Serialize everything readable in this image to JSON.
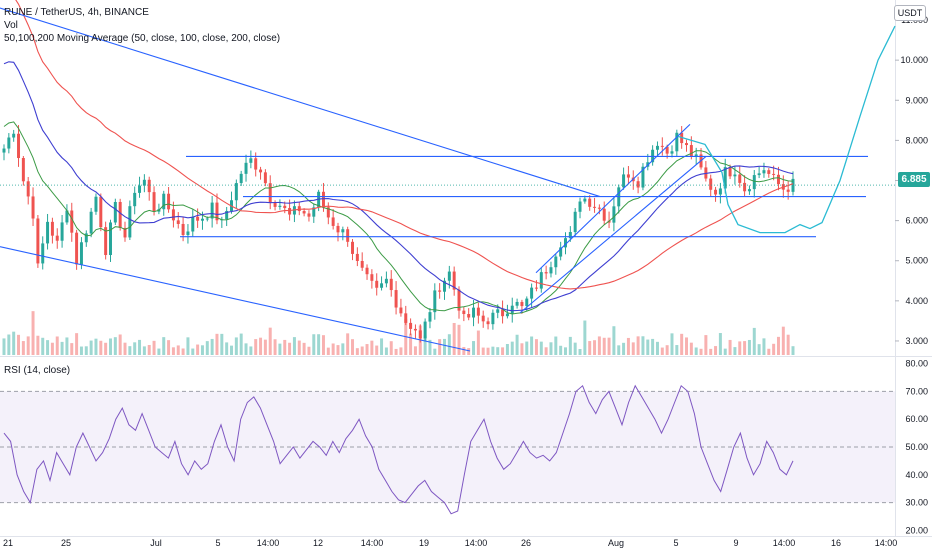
{
  "header": {
    "symbol": "RUNE / TetherUS, 4h, BINANCE",
    "volume_label": "Vol",
    "ma_label": "50,100,200 Moving Average (50, close, 100, close, 200, close)",
    "rsi_label": "RSI (14, close)",
    "currency": "USDT",
    "last_price": "6.885"
  },
  "colors": {
    "up": "#26a69a",
    "down": "#ef5350",
    "ma50": "#3c9b46",
    "ma100": "#3f3fd1",
    "ma200": "#ef5350",
    "trendline": "#2962ff",
    "projection": "#2bbbd3",
    "rsi_line": "#7e57c2",
    "rsi_band": "#ede7f6"
  },
  "chart_data": [
    {
      "type": "candlestick",
      "title": "RUNE / TetherUS, 4h, BINANCE",
      "y_axis_ticks": [
        "11.000",
        "10.000",
        "9.000",
        "8.000",
        "7.000",
        "6.000",
        "5.000",
        "4.000",
        "3.000"
      ],
      "ylim": [
        2.65,
        11.3
      ],
      "x_ticks": [
        "21",
        "25",
        "Jul",
        "5",
        "14:00",
        "12",
        "14:00",
        "19",
        "14:00",
        "26",
        "Aug",
        "5",
        "9",
        "14:00",
        "16",
        "14:00"
      ],
      "price_close_path": [
        [
          0,
          7.8
        ],
        [
          2,
          8.3
        ],
        [
          4,
          7.0
        ],
        [
          6,
          6.2
        ],
        [
          7,
          4.8
        ],
        [
          9,
          6.0
        ],
        [
          11,
          5.4
        ],
        [
          13,
          6.4
        ],
        [
          15,
          5.0
        ],
        [
          17,
          5.8
        ],
        [
          19,
          6.6
        ],
        [
          21,
          5.3
        ],
        [
          23,
          6.3
        ],
        [
          25,
          5.6
        ],
        [
          27,
          6.8
        ],
        [
          29,
          7.0
        ],
        [
          31,
          6.3
        ],
        [
          33,
          6.5
        ],
        [
          35,
          6.1
        ],
        [
          37,
          5.7
        ],
        [
          39,
          6.0
        ],
        [
          41,
          6.1
        ],
        [
          43,
          6.3
        ],
        [
          45,
          5.9
        ],
        [
          47,
          6.6
        ],
        [
          49,
          7.2
        ],
        [
          51,
          7.5
        ],
        [
          53,
          7.3
        ],
        [
          55,
          6.6
        ],
        [
          57,
          6.4
        ],
        [
          59,
          6.1
        ],
        [
          61,
          6.3
        ],
        [
          63,
          6.1
        ],
        [
          65,
          6.6
        ],
        [
          67,
          6.1
        ],
        [
          69,
          5.8
        ],
        [
          71,
          5.6
        ],
        [
          73,
          4.9
        ],
        [
          75,
          4.5
        ],
        [
          77,
          4.2
        ],
        [
          79,
          4.5
        ],
        [
          81,
          4.0
        ],
        [
          83,
          3.5
        ],
        [
          85,
          3.3
        ],
        [
          86,
          3.0
        ],
        [
          88,
          3.8
        ],
        [
          90,
          4.4
        ],
        [
          92,
          4.7
        ],
        [
          93,
          4.3
        ],
        [
          95,
          3.5
        ],
        [
          97,
          3.7
        ],
        [
          99,
          3.5
        ],
        [
          101,
          3.6
        ],
        [
          103,
          3.7
        ],
        [
          105,
          4.0
        ],
        [
          107,
          3.8
        ],
        [
          109,
          4.2
        ],
        [
          111,
          4.6
        ],
        [
          113,
          5.0
        ],
        [
          115,
          5.5
        ],
        [
          117,
          5.6
        ],
        [
          119,
          6.6
        ],
        [
          121,
          6.5
        ],
        [
          123,
          6.3
        ],
        [
          125,
          6.0
        ],
        [
          127,
          6.9
        ],
        [
          129,
          7.2
        ],
        [
          131,
          7.0
        ],
        [
          133,
          7.6
        ],
        [
          135,
          8.0
        ],
        [
          137,
          7.7
        ],
        [
          139,
          8.1
        ],
        [
          141,
          7.8
        ],
        [
          143,
          7.5
        ],
        [
          145,
          7.0
        ],
        [
          147,
          6.7
        ],
        [
          149,
          7.2
        ],
        [
          151,
          7.3
        ],
        [
          153,
          6.8
        ],
        [
          155,
          7.1
        ],
        [
          157,
          7.3
        ],
        [
          159,
          7.0
        ],
        [
          161,
          6.8
        ],
        [
          163,
          6.9
        ]
      ],
      "volume_note": "volume bars at bottom of price pane",
      "moving_averages": [
        {
          "name": "MA 50",
          "color": "#3c9b46"
        },
        {
          "name": "MA 100",
          "color": "#3f3fd1"
        },
        {
          "name": "MA 200",
          "color": "#ef5350"
        }
      ],
      "horizontal_levels": [
        7.6,
        6.6,
        5.6
      ],
      "last_value": 6.885
    },
    {
      "type": "line",
      "title": "RSI (14, close)",
      "y_axis_ticks": [
        "80.00",
        "70.00",
        "60.00",
        "50.00",
        "40.00",
        "30.00",
        "20.00"
      ],
      "ylim": [
        18,
        82
      ],
      "reference_levels": [
        70,
        50,
        30
      ],
      "values": [
        55,
        52,
        40,
        34,
        30,
        42,
        45,
        38,
        48,
        44,
        40,
        50,
        55,
        50,
        45,
        48,
        53,
        60,
        64,
        58,
        56,
        62,
        56,
        50,
        48,
        46,
        52,
        44,
        40,
        45,
        42,
        44,
        52,
        58,
        50,
        45,
        60,
        66,
        68,
        64,
        58,
        52,
        44,
        47,
        50,
        46,
        49,
        52,
        50,
        47,
        52,
        48,
        53,
        56,
        60,
        54,
        50,
        42,
        38,
        34,
        31,
        30,
        33,
        36,
        38,
        34,
        32,
        30,
        26,
        27,
        40,
        52,
        56,
        60,
        52,
        46,
        42,
        44,
        48,
        52,
        48,
        46,
        47,
        45,
        48,
        55,
        62,
        70,
        72,
        66,
        62,
        67,
        70,
        64,
        58,
        66,
        72,
        68,
        64,
        60,
        55,
        60,
        66,
        72,
        70,
        62,
        50,
        44,
        38,
        34,
        42,
        50,
        55,
        46,
        40,
        44,
        52,
        48,
        42,
        40,
        45
      ]
    }
  ]
}
